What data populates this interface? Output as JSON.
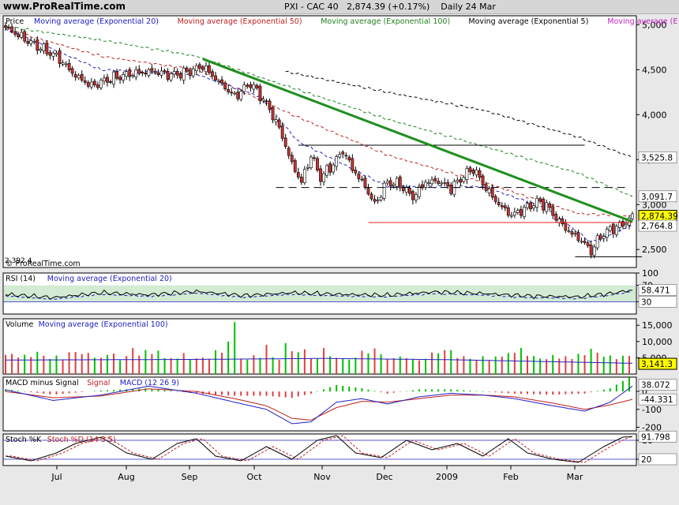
{
  "header": {
    "brand": "www.ProRealTime.com",
    "instrument": "PXI - CAC 40",
    "last": "2,874.39",
    "change": "(+0.17%)",
    "period": "Daily 24 Mar"
  },
  "colors": {
    "panel_bg": "#ffffff",
    "ema20": "#2020c0",
    "ema50": "#c02020",
    "ema100": "#208020",
    "ema5": "#000000",
    "trendline": "#1f8f1f",
    "support": "#e02020",
    "bull": "#ffffff",
    "bear": "#c83232",
    "rsi_fill": "#c8e6c8",
    "volume_up": "#00c000",
    "volume_down": "#e04040"
  },
  "chart_data": [
    {
      "type": "candlestick",
      "panel": "price",
      "title": "Price",
      "legend": [
        {
          "name": "Moving average (Exponential 20)",
          "color": "#2020c0"
        },
        {
          "name": "Moving average (Exponential 50)",
          "color": "#c02020"
        },
        {
          "name": "Moving average (Exponential 100)",
          "color": "#208020"
        },
        {
          "name": "Moving average (Exponential 5)",
          "color": "#000000"
        },
        {
          "name": "Moving average (E",
          "color": "#c020c0"
        }
      ],
      "ylim": [
        2300,
        5100
      ],
      "yticks": [
        2500,
        3000,
        3500,
        4000,
        4500,
        5000
      ],
      "ytick_labels": [
        "2,500",
        "3,000",
        "3,500",
        "4,000",
        "4,500",
        "5,000"
      ],
      "value_tags": [
        {
          "label": "3,525.8",
          "value": 3525.8,
          "style": "plain"
        },
        {
          "label": "3,091.7",
          "value": 3091.7,
          "style": "plain"
        },
        {
          "label": "2,874.39",
          "value": 2874.39,
          "style": "highlight"
        },
        {
          "label": "2,764.8",
          "value": 2764.8,
          "style": "plain"
        }
      ],
      "low_label": "2,392.4",
      "watermark": "© ProRealTime.com",
      "x_months": [
        "Jul",
        "Aug",
        "Sep",
        "Oct",
        "Nov",
        "Dec",
        "2009",
        "Feb",
        "Mar"
      ],
      "close_anchors": [
        [
          0,
          4970
        ],
        [
          8,
          4800
        ],
        [
          16,
          4650
        ],
        [
          22,
          4430
        ],
        [
          27,
          4320
        ],
        [
          33,
          4400
        ],
        [
          40,
          4460
        ],
        [
          46,
          4480
        ],
        [
          52,
          4440
        ],
        [
          57,
          4470
        ],
        [
          62,
          4540
        ],
        [
          66,
          4400
        ],
        [
          72,
          4200
        ],
        [
          77,
          4350
        ],
        [
          82,
          4120
        ],
        [
          86,
          3850
        ],
        [
          90,
          3450
        ],
        [
          93,
          3250
        ],
        [
          96,
          3550
        ],
        [
          99,
          3300
        ],
        [
          103,
          3450
        ],
        [
          106,
          3600
        ],
        [
          109,
          3400
        ],
        [
          113,
          3200
        ],
        [
          116,
          3000
        ],
        [
          120,
          3250
        ],
        [
          124,
          3220
        ],
        [
          128,
          3080
        ],
        [
          132,
          3250
        ],
        [
          136,
          3260
        ],
        [
          140,
          3180
        ],
        [
          144,
          3320
        ],
        [
          147,
          3400
        ],
        [
          151,
          3180
        ],
        [
          155,
          3000
        ],
        [
          159,
          2880
        ],
        [
          163,
          2950
        ],
        [
          167,
          3030
        ],
        [
          170,
          2990
        ],
        [
          173,
          2850
        ],
        [
          177,
          2700
        ],
        [
          181,
          2600
        ],
        [
          184,
          2480
        ],
        [
          187,
          2650
        ],
        [
          190,
          2720
        ],
        [
          194,
          2780
        ],
        [
          197,
          2870
        ]
      ],
      "trendlines": [
        {
          "label": "downtrend",
          "from": [
            62,
            4620
          ],
          "to": [
            197,
            2810
          ],
          "color": "#1f8f1f"
        }
      ],
      "horizontal_lines": [
        {
          "from": 92,
          "to": 182,
          "value": 3660,
          "style": "solid",
          "color": "#000000"
        },
        {
          "from": 85,
          "to": 195,
          "value": 3190,
          "style": "dashed",
          "color": "#000000"
        },
        {
          "from": 114,
          "to": 197,
          "value": 2800,
          "style": "solid",
          "color": "#e02020"
        },
        {
          "from": 179,
          "to": 200,
          "value": 2420,
          "style": "solid",
          "color": "#000000"
        }
      ],
      "ema_lines": [
        {
          "name": "EMA 100",
          "color": "#208020",
          "style": "dashed",
          "anchors": [
            [
              0,
              4980
            ],
            [
              30,
              4830
            ],
            [
              60,
              4650
            ],
            [
              90,
              4300
            ],
            [
              120,
              3950
            ],
            [
              150,
              3650
            ],
            [
              180,
              3350
            ],
            [
              197,
              3090
            ]
          ]
        },
        {
          "name": "EMA 200",
          "color": "#000000",
          "style": "dashed",
          "anchors": [
            [
              88,
              4480
            ],
            [
              120,
              4250
            ],
            [
              150,
              4050
            ],
            [
              180,
              3750
            ],
            [
              197,
              3525
            ]
          ]
        },
        {
          "name": "EMA 50",
          "color": "#c02020",
          "style": "dashed",
          "anchors": [
            [
              0,
              4950
            ],
            [
              30,
              4650
            ],
            [
              60,
              4500
            ],
            [
              90,
              4000
            ],
            [
              120,
              3550
            ],
            [
              150,
              3250
            ],
            [
              180,
              2900
            ],
            [
              197,
              2870
            ]
          ]
        },
        {
          "name": "EMA 20",
          "color": "#2020c0",
          "style": "dashed",
          "anchors": [
            [
              0,
              4950
            ],
            [
              30,
              4500
            ],
            [
              60,
              4450
            ],
            [
              80,
              4200
            ],
            [
              92,
              3700
            ],
            [
              120,
              3200
            ],
            [
              150,
              3200
            ],
            [
              170,
              2960
            ],
            [
              184,
              2580
            ],
            [
              197,
              2770
            ]
          ]
        }
      ]
    },
    {
      "type": "line",
      "panel": "rsi",
      "title": "RSI (14)",
      "legend": [
        {
          "name": "Moving average (Exponential 20)",
          "color": "#2020c0"
        }
      ],
      "ylim": [
        0,
        100
      ],
      "yticks": [
        100,
        70,
        30
      ],
      "ytick_labels": [
        "100",
        "70",
        "30"
      ],
      "value_tags": [
        {
          "label": "58.471",
          "value": 58.471
        },
        {
          "label": "30",
          "value": 30
        }
      ],
      "anchors": [
        [
          0,
          48
        ],
        [
          15,
          40
        ],
        [
          30,
          52
        ],
        [
          45,
          47
        ],
        [
          60,
          55
        ],
        [
          75,
          45
        ],
        [
          90,
          52
        ],
        [
          105,
          48
        ],
        [
          120,
          46
        ],
        [
          135,
          54
        ],
        [
          150,
          50
        ],
        [
          165,
          44
        ],
        [
          180,
          42
        ],
        [
          190,
          50
        ],
        [
          197,
          58.5
        ]
      ]
    },
    {
      "type": "bar",
      "panel": "volume",
      "title": "Volume",
      "legend": [
        {
          "name": "Moving average (Exponential 100)",
          "color": "#2020c0"
        }
      ],
      "ylim": [
        0,
        17000
      ],
      "yticks": [
        5000,
        10000,
        15000
      ],
      "ytick_labels": [
        "5,000",
        "10,000",
        "15,000"
      ],
      "value_tags": [
        {
          "label": "3,141.3",
          "value": 3141.3
        }
      ],
      "ma_anchors": [
        [
          0,
          4300
        ],
        [
          60,
          4500
        ],
        [
          100,
          4800
        ],
        [
          140,
          4400
        ],
        [
          197,
          3300
        ]
      ],
      "spikes": [
        [
          9,
          8000
        ],
        [
          19,
          8500
        ],
        [
          29,
          9500
        ],
        [
          40,
          8000
        ],
        [
          55,
          7000
        ],
        [
          70,
          10000
        ],
        [
          72,
          16000
        ],
        [
          82,
          9000
        ],
        [
          88,
          9500
        ],
        [
          100,
          8000
        ]
      ]
    },
    {
      "type": "bar",
      "panel": "macd",
      "title": "MACD minus Signal",
      "legend": [
        {
          "name": "Signal",
          "color": "#c02020"
        },
        {
          "name": "MACD (12 26 9)",
          "color": "#2020c0"
        }
      ],
      "ylim": [
        -220,
        80
      ],
      "yticks": [
        0,
        -100,
        -200
      ],
      "ytick_labels": [
        "0",
        "-100",
        "-200"
      ],
      "value_tags": [
        {
          "label": "38.072",
          "value": 38.072
        },
        {
          "label": "-44.331",
          "value": -44.331
        }
      ],
      "macd_anchors": [
        [
          0,
          10
        ],
        [
          15,
          -50
        ],
        [
          30,
          -20
        ],
        [
          45,
          30
        ],
        [
          60,
          -10
        ],
        [
          72,
          -60
        ],
        [
          82,
          -100
        ],
        [
          90,
          -180
        ],
        [
          96,
          -170
        ],
        [
          104,
          -60
        ],
        [
          112,
          -40
        ],
        [
          120,
          -70
        ],
        [
          130,
          -30
        ],
        [
          140,
          -10
        ],
        [
          150,
          -20
        ],
        [
          160,
          -40
        ],
        [
          172,
          -80
        ],
        [
          182,
          -110
        ],
        [
          190,
          -60
        ],
        [
          197,
          30
        ]
      ],
      "signal_anchors": [
        [
          0,
          0
        ],
        [
          15,
          -35
        ],
        [
          30,
          -25
        ],
        [
          45,
          15
        ],
        [
          60,
          0
        ],
        [
          72,
          -40
        ],
        [
          82,
          -80
        ],
        [
          90,
          -150
        ],
        [
          96,
          -160
        ],
        [
          104,
          -90
        ],
        [
          112,
          -55
        ],
        [
          120,
          -60
        ],
        [
          130,
          -40
        ],
        [
          140,
          -20
        ],
        [
          150,
          -20
        ],
        [
          160,
          -30
        ],
        [
          172,
          -65
        ],
        [
          182,
          -100
        ],
        [
          190,
          -75
        ],
        [
          197,
          -44
        ]
      ]
    },
    {
      "type": "line",
      "panel": "stoch",
      "title": "Stoch %K",
      "legend": [
        {
          "name": "Stoch %D (14 3 5)",
          "color": "#c02020"
        }
      ],
      "ylim": [
        0,
        100
      ],
      "yticks": [
        80,
        20
      ],
      "ytick_labels": [
        "80",
        "20"
      ],
      "value_tags": [
        {
          "label": "91.798",
          "value": 91.798
        },
        {
          "label": "20",
          "value": 20
        }
      ],
      "anchors": [
        [
          0,
          30
        ],
        [
          8,
          15
        ],
        [
          16,
          40
        ],
        [
          22,
          70
        ],
        [
          30,
          90
        ],
        [
          38,
          40
        ],
        [
          46,
          20
        ],
        [
          54,
          70
        ],
        [
          60,
          85
        ],
        [
          66,
          30
        ],
        [
          74,
          15
        ],
        [
          82,
          60
        ],
        [
          90,
          20
        ],
        [
          98,
          80
        ],
        [
          104,
          95
        ],
        [
          110,
          40
        ],
        [
          118,
          25
        ],
        [
          126,
          80
        ],
        [
          134,
          50
        ],
        [
          142,
          70
        ],
        [
          150,
          30
        ],
        [
          158,
          85
        ],
        [
          164,
          40
        ],
        [
          172,
          20
        ],
        [
          180,
          10
        ],
        [
          188,
          60
        ],
        [
          194,
          90
        ],
        [
          197,
          92
        ]
      ]
    }
  ]
}
